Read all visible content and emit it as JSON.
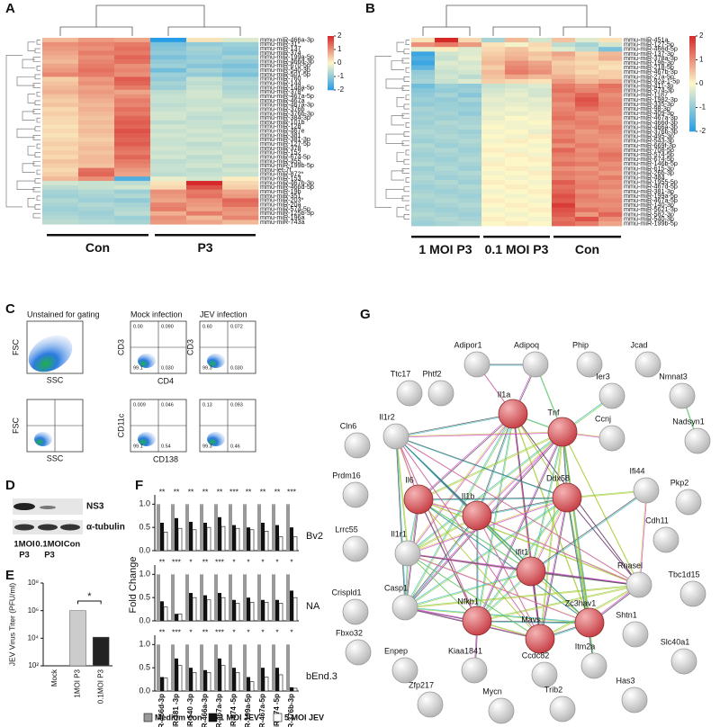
{
  "panel_labels": [
    "A",
    "B",
    "C",
    "D",
    "E",
    "F",
    "G"
  ],
  "heatmap_a": {
    "rows": [
      "mmu-miR-466a-3p",
      "mmu-miR-31*",
      "mmu-miR-137",
      "mmu-miR-374",
      "mmu-miR-199a-5p",
      "mmu-miR-466d-3p",
      "mmu-miR-670-5p",
      "mmu-miR-540-3p",
      "mmu-miR-501-5p",
      "mmu-miR-760",
      "mmu-miR-144",
      "mmu-miR-148a-5p",
      "mmu-miR-378*",
      "mmu-miR-467a-5p",
      "mmu-miR-467a",
      "mmu-miR-467a-3p",
      "mmu-miR-376b",
      "mmu-miR-376b-3p",
      "mmu-miR-384-3p",
      "mmu-miR-101b",
      "mmu-miR-128",
      "mmu-miR-467e",
      "mmu-miR-381",
      "mmu-miR-381-3p",
      "mmu-miR-127-5p",
      "mmu-miR-378",
      "mmu-miR-152",
      "mmu-miR-674-5p",
      "mmu-miR-455",
      "mmu-miR-199b-5p",
      "mmu-let-7f",
      "mmu-miR-872*",
      "mmu-miR-153",
      "mmu-miR-467b-3p",
      "mmu-miR-466d-5p",
      "mmu-miR-19b",
      "mmu-miR-351",
      "mmu-miR-203*",
      "mmu-miR-20a",
      "mmu-miR-574-5p",
      "mmu-miR-125b-3p",
      "mmu-miR-196a",
      "mmu-miR-743a"
    ],
    "values": [
      [
        0.6,
        0.9,
        0.8,
        -2,
        0.2,
        -0.3
      ],
      [
        1.0,
        1.1,
        1.2,
        -1.2,
        -1.0,
        -0.9
      ],
      [
        0.9,
        1.0,
        1.3,
        -1.1,
        -0.8,
        -1.0
      ],
      [
        0.8,
        1.2,
        1.2,
        -1.0,
        -0.9,
        -1.1
      ],
      [
        0.7,
        1.0,
        1.4,
        -1.2,
        -1.0,
        -0.8
      ],
      [
        0.6,
        1.1,
        1.3,
        -1.0,
        -0.9,
        -1.0
      ],
      [
        0.8,
        1.2,
        1.0,
        -0.9,
        -1.1,
        -1.2
      ],
      [
        0.9,
        1.3,
        1.1,
        -1.3,
        -0.8,
        -1.0
      ],
      [
        1.1,
        1.2,
        1.0,
        -0.9,
        -1.0,
        -1.2
      ],
      [
        0.4,
        0.9,
        1.5,
        -1.0,
        -0.5,
        -0.8
      ],
      [
        0.5,
        1.0,
        1.4,
        -0.8,
        -0.6,
        -0.7
      ],
      [
        0.6,
        0.8,
        1.2,
        -0.9,
        -0.5,
        -0.8
      ],
      [
        0.7,
        0.9,
        0.8,
        -0.6,
        -0.4,
        -0.7
      ],
      [
        0.5,
        0.8,
        1.0,
        -0.5,
        -0.4,
        -0.6
      ],
      [
        0.4,
        0.7,
        1.2,
        -0.5,
        -0.5,
        -0.4
      ],
      [
        0.5,
        0.6,
        1.1,
        -0.6,
        -0.5,
        -0.5
      ],
      [
        0.3,
        0.7,
        1.3,
        -0.5,
        -0.4,
        -0.6
      ],
      [
        0.4,
        0.6,
        1.2,
        -0.4,
        -0.5,
        -0.5
      ],
      [
        0.3,
        0.5,
        1.4,
        -0.4,
        -0.6,
        -0.5
      ],
      [
        0.3,
        0.6,
        1.5,
        -0.6,
        -0.5,
        -0.4
      ],
      [
        0.2,
        0.5,
        1.4,
        -0.4,
        -0.5,
        -0.6
      ],
      [
        0.3,
        0.6,
        1.6,
        -0.5,
        -0.4,
        -0.5
      ],
      [
        0.2,
        0.5,
        1.5,
        -0.4,
        -0.5,
        -0.4
      ],
      [
        0.3,
        0.4,
        1.4,
        -0.5,
        -0.4,
        -0.5
      ],
      [
        0.4,
        0.5,
        1.5,
        -0.5,
        -0.6,
        -0.4
      ],
      [
        0.3,
        0.6,
        1.3,
        -0.4,
        -0.5,
        -0.5
      ],
      [
        0.4,
        0.5,
        1.2,
        -0.5,
        -0.4,
        -0.5
      ],
      [
        0.3,
        0.6,
        1.4,
        -0.4,
        -0.6,
        -0.4
      ],
      [
        0.5,
        0.6,
        1.2,
        -0.6,
        -0.5,
        -0.4
      ],
      [
        0.4,
        0.5,
        1.1,
        -0.5,
        -0.4,
        -0.6
      ],
      [
        0.3,
        1.3,
        0.9,
        -0.5,
        -0.6,
        -0.4
      ],
      [
        0.4,
        1.4,
        0.8,
        -0.6,
        -0.5,
        -0.5
      ],
      [
        0.6,
        1.0,
        -1.6,
        -0.2,
        -0.4,
        0.1
      ],
      [
        -0.4,
        -0.5,
        -0.6,
        0.2,
        2.0,
        0.3
      ],
      [
        -0.6,
        -0.5,
        -0.4,
        0.3,
        1.6,
        0.4
      ],
      [
        -0.8,
        -0.7,
        -0.9,
        1.0,
        1.2,
        0.8
      ],
      [
        -0.9,
        -0.8,
        -0.7,
        0.9,
        1.3,
        0.9
      ],
      [
        -0.7,
        -0.9,
        -1.0,
        0.8,
        1.0,
        1.4
      ],
      [
        -0.8,
        -0.7,
        -0.8,
        1.1,
        0.9,
        1.3
      ],
      [
        -0.9,
        -0.8,
        -0.7,
        1.2,
        0.8,
        1.0
      ],
      [
        -0.8,
        -0.9,
        -0.6,
        0.7,
        1.2,
        0.9
      ],
      [
        -0.7,
        -0.8,
        -0.9,
        1.0,
        0.6,
        1.1
      ],
      [
        -0.6,
        -0.7,
        -0.8,
        0.9,
        0.8,
        0.6
      ]
    ],
    "groups": [
      "Con",
      "P3"
    ],
    "lim": [
      -2,
      2
    ],
    "ticks": [
      2,
      1,
      0,
      -1,
      -2
    ]
  },
  "heatmap_b": {
    "rows": [
      "mmu-miR-451a",
      "mmu-miR-127-5p",
      "mmu-miR-466d-5p",
      "mmu-miR-137-3p",
      "mmu-miR-378a-3p",
      "mmu-miR-19b-3p",
      "mmu-miR-218-5p",
      "mmu-miR-467b-3p",
      "mmu-miR-27a-5p",
      "mmu-miR-92a-1-5p",
      "mmu-miR-411-3p",
      "mmu-miR-574-3p",
      "mmu-miR-1187",
      "mmu-miR-1982-3p",
      "mmu-miR-335-3p",
      "mmu-miR-98-3p",
      "mmu-miR-409-3p",
      "mmu-miR-467a-3p",
      "mmu-miR-466d-3p",
      "mmu-miR-466a-3p",
      "mmu-miR-376b-3p",
      "mmu-miR-495-3p",
      "mmu-miR-543-3p",
      "mmu-miR-669f-3p",
      "mmu-miR-708-5p",
      "mmu-miR-574-5p",
      "mmu-miR-674-5p",
      "mmu-miR-146b-5p",
      "mmu-miR-615-3p",
      "mmu-miR-26b-3p",
      "mmu-miR-484",
      "mmu-miR-1955-5p",
      "mmu-miR-467d-5p",
      "mmu-miR-381-3p",
      "mmu-miR-199a-5p",
      "mmu-miR-467a-5p",
      "mmu-miR-140-3p",
      "mmu-miR-5621-3p",
      "mmu-miR-582-3p",
      "mmu-miR-540-3p",
      "mmu-miR-199b-5p"
    ],
    "values": [
      [
        0.2,
        2.0,
        0.3,
        -0.8,
        0.6,
        -0.4,
        0.5,
        -0.3,
        0.2
      ],
      [
        1.0,
        1.2,
        0.9,
        0.2,
        -0.1,
        0.3,
        -0.6,
        -0.8,
        -0.4
      ],
      [
        -0.2,
        0.1,
        -0.3,
        0.3,
        0.5,
        0.2,
        -0.3,
        -0.6,
        -1.2
      ],
      [
        -1.8,
        -0.4,
        -0.3,
        0.4,
        0.6,
        0.5,
        0.8,
        0.3,
        0.6
      ],
      [
        -1.6,
        -0.5,
        -0.2,
        0.5,
        0.7,
        0.4,
        0.6,
        0.4,
        0.7
      ],
      [
        -1.8,
        -0.3,
        -0.4,
        0.6,
        1.0,
        0.8,
        0.4,
        0.3,
        0.3
      ],
      [
        -1.5,
        -0.4,
        -0.3,
        0.4,
        1.1,
        0.9,
        0.5,
        0.4,
        0.2
      ],
      [
        -1.0,
        -0.5,
        -0.4,
        0.6,
        1.2,
        1.0,
        0.5,
        0.3,
        0.4
      ],
      [
        -0.9,
        -0.4,
        -0.6,
        0.5,
        0.8,
        0.6,
        0.7,
        0.5,
        0.4
      ],
      [
        -0.8,
        -0.5,
        -0.3,
        0.4,
        0.3,
        0.2,
        0.9,
        0.6,
        0.8
      ],
      [
        -1.3,
        -0.9,
        -1.0,
        -0.5,
        -0.4,
        -0.3,
        1.2,
        1.0,
        1.3
      ],
      [
        -1.1,
        -1.0,
        -0.9,
        -0.4,
        -0.3,
        -0.4,
        1.3,
        1.1,
        1.2
      ],
      [
        -1.0,
        -0.8,
        -1.1,
        -0.3,
        -0.2,
        -0.4,
        1.1,
        1.4,
        1.0
      ],
      [
        -0.9,
        -1.0,
        -0.8,
        -0.2,
        -0.3,
        -0.2,
        1.2,
        1.6,
        1.1
      ],
      [
        -1.0,
        -0.9,
        -1.0,
        -0.3,
        -0.2,
        -0.3,
        1.0,
        1.5,
        1.2
      ],
      [
        -0.8,
        -0.9,
        -0.9,
        -0.2,
        -0.1,
        -0.2,
        1.1,
        1.3,
        1.1
      ],
      [
        -0.9,
        -0.8,
        -1.0,
        -0.1,
        -0.2,
        -0.1,
        1.2,
        1.0,
        1.1
      ],
      [
        -0.8,
        -0.9,
        -0.8,
        -0.2,
        0.0,
        -0.1,
        1.3,
        1.1,
        0.9
      ],
      [
        -0.9,
        -0.7,
        -0.8,
        -0.1,
        -0.1,
        0.0,
        1.1,
        1.2,
        1.0
      ],
      [
        -0.8,
        -0.8,
        -0.7,
        0.0,
        -0.1,
        -0.1,
        1.0,
        1.1,
        1.2
      ],
      [
        -0.7,
        -0.8,
        -0.9,
        -0.1,
        0.0,
        -0.2,
        1.2,
        0.9,
        1.1
      ],
      [
        -0.8,
        -0.7,
        -0.8,
        0.0,
        -0.1,
        0.1,
        1.1,
        1.0,
        1.0
      ],
      [
        -0.9,
        -0.8,
        -0.7,
        -0.1,
        0.1,
        0.0,
        1.3,
        1.0,
        0.9
      ],
      [
        -0.7,
        -0.9,
        -0.8,
        0.0,
        0.0,
        -0.1,
        1.0,
        1.2,
        1.0
      ],
      [
        -0.8,
        -0.7,
        -0.9,
        0.1,
        -0.1,
        0.0,
        1.4,
        1.0,
        1.1
      ],
      [
        -0.9,
        -0.8,
        -0.8,
        0.0,
        0.1,
        -0.1,
        1.2,
        1.1,
        1.3
      ],
      [
        -0.8,
        -0.9,
        -0.7,
        -0.1,
        0.0,
        0.1,
        1.1,
        1.0,
        1.2
      ],
      [
        -0.7,
        -0.8,
        -0.8,
        0.1,
        0.0,
        0.0,
        1.3,
        1.2,
        1.0
      ],
      [
        -0.9,
        -0.7,
        -0.9,
        0.0,
        0.1,
        -0.1,
        1.0,
        0.9,
        1.1
      ],
      [
        -0.8,
        -0.8,
        -0.7,
        -0.1,
        0.0,
        0.1,
        1.2,
        1.1,
        0.9
      ],
      [
        -0.7,
        -0.9,
        -0.8,
        0.0,
        -0.1,
        0.0,
        1.1,
        1.0,
        1.2
      ],
      [
        -0.8,
        -0.7,
        -0.9,
        0.1,
        0.0,
        -0.1,
        1.5,
        1.1,
        1.0
      ],
      [
        -0.9,
        -0.8,
        -0.7,
        0.0,
        0.1,
        0.0,
        1.3,
        1.2,
        1.1
      ],
      [
        -0.8,
        -0.9,
        -0.8,
        -0.1,
        0.0,
        0.1,
        1.4,
        1.0,
        0.9
      ],
      [
        -0.7,
        -0.8,
        -0.9,
        0.0,
        -0.1,
        0.0,
        1.6,
        1.2,
        1.0
      ],
      [
        -0.8,
        -0.7,
        -0.8,
        0.1,
        0.0,
        -0.1,
        1.5,
        1.1,
        1.1
      ],
      [
        -0.9,
        -0.8,
        -0.7,
        0.0,
        0.1,
        0.0,
        1.8,
        1.0,
        1.0
      ],
      [
        -0.8,
        -0.9,
        -0.8,
        -0.1,
        0.0,
        0.1,
        1.6,
        1.3,
        1.1
      ],
      [
        -0.7,
        -0.8,
        -0.9,
        0.0,
        -0.1,
        0.0,
        1.5,
        0.9,
        1.4
      ],
      [
        -0.8,
        -0.7,
        -0.8,
        0.1,
        0.0,
        -0.1,
        1.3,
        1.6,
        1.0
      ],
      [
        -0.9,
        -0.8,
        -0.7,
        0.0,
        0.1,
        0.0,
        1.4,
        1.2,
        0.8
      ]
    ],
    "groups": [
      "1 MOI P3",
      "0.1 MOI P3",
      "Con"
    ],
    "lim": [
      -2,
      2
    ],
    "ticks": [
      2,
      1,
      0,
      -1,
      -2
    ]
  },
  "flow": {
    "titles": [
      "Unstained for gating",
      "Mock infection",
      "JEV infection"
    ],
    "axis_labels": [
      "FSC",
      "SSC",
      "CD3",
      "CD3",
      "CD4",
      "FSC",
      "SSC",
      "CD11c",
      "CD138"
    ],
    "quadrants": [
      [
        "0.00",
        "0.090",
        "99.1",
        "0.030"
      ],
      [
        "0.60",
        "0.072",
        "99.3",
        "0.030"
      ],
      [
        "0.009",
        "0.046",
        "99.1",
        "0.54"
      ],
      [
        "0.13",
        "0.093",
        "99.3",
        "0.46"
      ]
    ]
  },
  "western": {
    "bands": [
      "NS3",
      "α-tubulin"
    ],
    "lanes": [
      [
        "1MOI",
        "P3"
      ],
      [
        "0.1MOI",
        "P3"
      ],
      [
        "Con"
      ]
    ]
  },
  "titer": {
    "type": "bar",
    "y_label": "JEV Virus Titer (PFU/ml)",
    "categories": [
      "Mock",
      "1MOI P3",
      "0.1MOI P3"
    ],
    "values": [
      null,
      1000000,
      12000
    ],
    "colors": [
      "#cccccc",
      "#cccccc",
      "#222222"
    ],
    "log_scale": true,
    "ylim": [
      100,
      100000000
    ],
    "yticks": [
      {
        "value": 100,
        "label": "10²"
      },
      {
        "value": 10000,
        "label": "10⁴"
      },
      {
        "value": 1000000,
        "label": "10⁶"
      },
      {
        "value": 100000000,
        "label": "10⁸"
      }
    ],
    "annotation": "*"
  },
  "fold_change": {
    "type": "bar",
    "y_label": "Fold Change",
    "categories": [
      "miR-466d-3p",
      "miR-381 -3p",
      "miR-540 -3p",
      "miR-466a-3p",
      "miR-467a-3p",
      "miR-574 -5p",
      "miR-199a-5p",
      "miR-467a-5p",
      "miR-674 -5p",
      "miR-376b-3p"
    ],
    "groups": [
      "Bv2",
      "NA",
      "bEnd.3"
    ],
    "stars": [
      [
        "**",
        "**",
        "**",
        "**",
        "**",
        "***",
        "**",
        "**",
        "**",
        "***"
      ],
      [
        "**",
        "***",
        "*",
        "**",
        "***",
        "*",
        "*",
        "*",
        "*",
        "*"
      ],
      [
        "**",
        "***",
        "*",
        "**",
        "***",
        "*",
        "*",
        "*",
        "*",
        "*"
      ]
    ],
    "series": [
      {
        "name": "Medium con",
        "color": "#999999",
        "values": [
          [
            1,
            1,
            1,
            1,
            1,
            1,
            1,
            1,
            1,
            1
          ],
          [
            1,
            1,
            1,
            1,
            1,
            1,
            1,
            1,
            1,
            1
          ],
          [
            1,
            1,
            1,
            1,
            1,
            1,
            1,
            1,
            1,
            1
          ]
        ]
      },
      {
        "name": "1 MOI JEV",
        "color": "#111111",
        "values": [
          [
            0.6,
            0.7,
            0.62,
            0.6,
            0.72,
            0.55,
            0.5,
            0.6,
            0.55,
            0.5
          ],
          [
            0.42,
            0.15,
            0.6,
            0.55,
            0.6,
            0.45,
            0.5,
            0.45,
            0.45,
            0.65
          ],
          [
            0.3,
            0.7,
            0.5,
            0.45,
            0.7,
            0.5,
            0.3,
            0.5,
            0.5,
            0.08
          ]
        ]
      },
      {
        "name": "5 MOI JEV",
        "color": "#ffffff",
        "values": [
          [
            0.4,
            0.48,
            0.45,
            0.5,
            0.52,
            0.48,
            0.45,
            0.42,
            0.3,
            0.3
          ],
          [
            0.3,
            0.15,
            0.5,
            0.45,
            0.5,
            0.38,
            0.4,
            0.4,
            0.38,
            0.5
          ],
          [
            0.28,
            0.55,
            0.4,
            0.4,
            0.55,
            0.4,
            0.2,
            0.3,
            0.35,
            0.06
          ]
        ]
      }
    ],
    "ylim": [
      0,
      1.2
    ],
    "yticks": [
      {
        "value": 0,
        "label": "0.0"
      },
      0.5,
      {
        "value": 1,
        "label": "1.0"
      }
    ]
  },
  "network": {
    "nodes": [
      {
        "label": "Ttc17",
        "highlighted": false
      },
      {
        "label": "Phtf2",
        "highlighted": false
      },
      {
        "label": "Adipor1",
        "highlighted": false
      },
      {
        "label": "Adipoq",
        "highlighted": false
      },
      {
        "label": "Phip",
        "highlighted": false
      },
      {
        "label": "Jcad",
        "highlighted": false
      },
      {
        "label": "Il1a",
        "highlighted": true
      },
      {
        "label": "Tnf",
        "highlighted": true
      },
      {
        "label": "Ier3",
        "highlighted": false
      },
      {
        "label": "Nmnat3",
        "highlighted": false
      },
      {
        "label": "Il1r2",
        "highlighted": false
      },
      {
        "label": "Cln6",
        "highlighted": false
      },
      {
        "label": "Ccnj",
        "highlighted": false
      },
      {
        "label": "Nadsyn1",
        "highlighted": false
      },
      {
        "label": "Prdm16",
        "highlighted": false
      },
      {
        "label": "Il6",
        "highlighted": true
      },
      {
        "label": "Ddx58",
        "highlighted": true
      },
      {
        "label": "Il1b",
        "highlighted": true
      },
      {
        "label": "Ifi44",
        "highlighted": false
      },
      {
        "label": "Pkp2",
        "highlighted": false
      },
      {
        "label": "Cdh11",
        "highlighted": false
      },
      {
        "label": "Lrrc55",
        "highlighted": false
      },
      {
        "label": "Il1r1",
        "highlighted": false
      },
      {
        "label": "Ifit1",
        "highlighted": true
      },
      {
        "label": "Rnasel",
        "highlighted": false
      },
      {
        "label": "Tbc1d15",
        "highlighted": false
      },
      {
        "label": "Crispld1",
        "highlighted": false
      },
      {
        "label": "Casp1",
        "highlighted": false
      },
      {
        "label": "Nfkb1",
        "highlighted": true
      },
      {
        "label": "Mavs",
        "highlighted": true
      },
      {
        "label": "Zc3hav1",
        "highlighted": true
      },
      {
        "label": "Shtn1",
        "highlighted": false
      },
      {
        "label": "Fbxo32",
        "highlighted": false
      },
      {
        "label": "Enpep",
        "highlighted": false
      },
      {
        "label": "Kiaa1841",
        "highlighted": false
      },
      {
        "label": "Ccdc82",
        "highlighted": false
      },
      {
        "label": "Itm2a",
        "highlighted": false
      },
      {
        "label": "Slc40a1",
        "highlighted": false
      },
      {
        "label": "Zfp217",
        "highlighted": false
      },
      {
        "label": "Mycn",
        "highlighted": false
      },
      {
        "label": "Trib2",
        "highlighted": false
      },
      {
        "label": "Has3",
        "highlighted": false
      }
    ]
  }
}
